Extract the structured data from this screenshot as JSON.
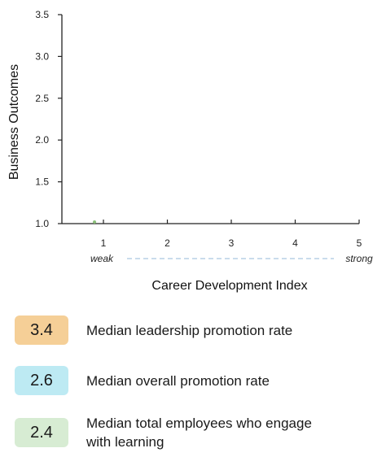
{
  "chart_data": {
    "type": "scatter",
    "xlabel": "Career Development Index",
    "ylabel": "Business Outcomes",
    "xlim": [
      0.35,
      5.0
    ],
    "ylim": [
      1.0,
      3.5
    ],
    "x_ticks": [
      1,
      2,
      3,
      4,
      5
    ],
    "x_tick_labels": [
      "1",
      "2",
      "3",
      "4",
      "5"
    ],
    "y_ticks": [
      1.0,
      1.5,
      2.0,
      2.5,
      3.0,
      3.5
    ],
    "y_tick_labels": [
      "1.0",
      "1.5",
      "2.0",
      "2.5",
      "3.0",
      "3.5"
    ],
    "x_axis_end_labels": {
      "low": "weak",
      "high": "strong"
    },
    "grid": false,
    "legend_position": "bottom",
    "series": [
      {
        "x": [
          0.86
        ],
        "y": [
          1.02
        ],
        "color": "#8bbf7a"
      }
    ]
  },
  "legend": [
    {
      "value": "3.4",
      "label": "Median leadership promotion rate",
      "color": "#f5cf97"
    },
    {
      "value": "2.6",
      "label": "Median overall promotion rate",
      "color": "#bdeaf3"
    },
    {
      "value": "2.4",
      "label": "Median total employees who engage with learning",
      "color": "#d7ecd3"
    }
  ],
  "colors": {
    "axis": "#222222",
    "dashed_guide": "#a9c8e0"
  }
}
